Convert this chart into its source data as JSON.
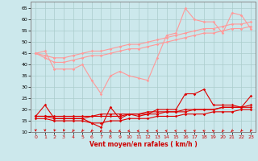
{
  "xlabel": "Vent moyen/en rafales ( km/h )",
  "background_color": "#cce8ec",
  "grid_color": "#aacccc",
  "xlim": [
    -0.5,
    23.5
  ],
  "ylim": [
    10,
    68
  ],
  "yticks": [
    10,
    15,
    20,
    25,
    30,
    35,
    40,
    45,
    50,
    55,
    60,
    65
  ],
  "xticks": [
    0,
    1,
    2,
    3,
    4,
    5,
    6,
    7,
    8,
    9,
    10,
    11,
    12,
    13,
    14,
    15,
    16,
    17,
    18,
    19,
    20,
    21,
    22,
    23
  ],
  "lines_light": [
    {
      "x": [
        0,
        1,
        2,
        3,
        4,
        5,
        6,
        7,
        8,
        9,
        10,
        11,
        12,
        13,
        14,
        15,
        16,
        17,
        18,
        19,
        20,
        21,
        22,
        23
      ],
      "y": [
        45,
        46,
        38,
        38,
        38,
        40,
        33,
        27,
        35,
        37,
        35,
        34,
        33,
        43,
        53,
        54,
        65,
        60,
        59,
        59,
        54,
        63,
        62,
        56
      ],
      "color": "#ff9999",
      "lw": 0.8,
      "marker": "D",
      "ms": 1.8
    },
    {
      "x": [
        0,
        1,
        2,
        3,
        4,
        5,
        6,
        7,
        8,
        9,
        10,
        11,
        12,
        13,
        14,
        15,
        16,
        17,
        18,
        19,
        20,
        21,
        22,
        23
      ],
      "y": [
        45,
        44,
        43,
        43,
        44,
        45,
        46,
        46,
        47,
        48,
        49,
        49,
        50,
        51,
        52,
        53,
        54,
        55,
        56,
        56,
        57,
        58,
        58,
        59
      ],
      "color": "#ff9999",
      "lw": 0.8,
      "marker": "D",
      "ms": 1.8
    },
    {
      "x": [
        0,
        1,
        2,
        3,
        4,
        5,
        6,
        7,
        8,
        9,
        10,
        11,
        12,
        13,
        14,
        15,
        16,
        17,
        18,
        19,
        20,
        21,
        22,
        23
      ],
      "y": [
        45,
        43,
        41,
        41,
        42,
        43,
        44,
        44,
        45,
        46,
        47,
        47,
        48,
        49,
        50,
        51,
        52,
        53,
        54,
        54,
        55,
        56,
        56,
        57
      ],
      "color": "#ff9999",
      "lw": 0.8,
      "marker": "D",
      "ms": 1.8
    }
  ],
  "lines_dark": [
    {
      "x": [
        0,
        1,
        2,
        3,
        4,
        5,
        6,
        7,
        8,
        9,
        10,
        11,
        12,
        13,
        14,
        15,
        16,
        17,
        18,
        19,
        20,
        21,
        22,
        23
      ],
      "y": [
        17,
        22,
        16,
        16,
        16,
        16,
        14,
        12,
        21,
        16,
        18,
        17,
        18,
        20,
        20,
        20,
        27,
        27,
        29,
        22,
        22,
        22,
        21,
        26
      ],
      "color": "#dd0000",
      "lw": 0.8,
      "marker": "D",
      "ms": 1.8
    },
    {
      "x": [
        0,
        1,
        2,
        3,
        4,
        5,
        6,
        7,
        8,
        9,
        10,
        11,
        12,
        13,
        14,
        15,
        16,
        17,
        18,
        19,
        20,
        21,
        22,
        23
      ],
      "y": [
        17,
        17,
        17,
        17,
        17,
        17,
        17,
        18,
        18,
        18,
        18,
        18,
        19,
        19,
        19,
        19,
        20,
        20,
        20,
        20,
        21,
        21,
        21,
        21
      ],
      "color": "#dd0000",
      "lw": 0.8,
      "marker": "D",
      "ms": 1.8
    },
    {
      "x": [
        0,
        1,
        2,
        3,
        4,
        5,
        6,
        7,
        8,
        9,
        10,
        11,
        12,
        13,
        14,
        15,
        16,
        17,
        18,
        19,
        20,
        21,
        22,
        23
      ],
      "y": [
        17,
        17,
        16,
        16,
        16,
        16,
        17,
        17,
        17,
        17,
        18,
        18,
        18,
        18,
        19,
        19,
        19,
        20,
        20,
        20,
        21,
        21,
        21,
        22
      ],
      "color": "#dd0000",
      "lw": 0.8,
      "marker": "D",
      "ms": 1.8
    },
    {
      "x": [
        0,
        1,
        2,
        3,
        4,
        5,
        6,
        7,
        8,
        9,
        10,
        11,
        12,
        13,
        14,
        15,
        16,
        17,
        18,
        19,
        20,
        21,
        22,
        23
      ],
      "y": [
        16,
        16,
        15,
        15,
        15,
        15,
        14,
        14,
        15,
        15,
        16,
        16,
        16,
        17,
        17,
        17,
        18,
        18,
        18,
        19,
        19,
        19,
        20,
        20
      ],
      "color": "#dd0000",
      "lw": 0.8,
      "marker": "D",
      "ms": 1.8
    }
  ],
  "arrows_x": [
    0,
    1,
    2,
    3,
    4,
    5,
    6,
    7,
    8,
    9,
    10,
    11,
    12,
    13,
    14,
    15,
    16,
    17,
    18,
    19,
    20,
    21,
    22,
    23
  ],
  "arrow_angles_deg": [
    270,
    270,
    260,
    260,
    250,
    250,
    240,
    230,
    220,
    210,
    200,
    190,
    180,
    170,
    160,
    155,
    145,
    140,
    135,
    130,
    240,
    240,
    245,
    250
  ]
}
